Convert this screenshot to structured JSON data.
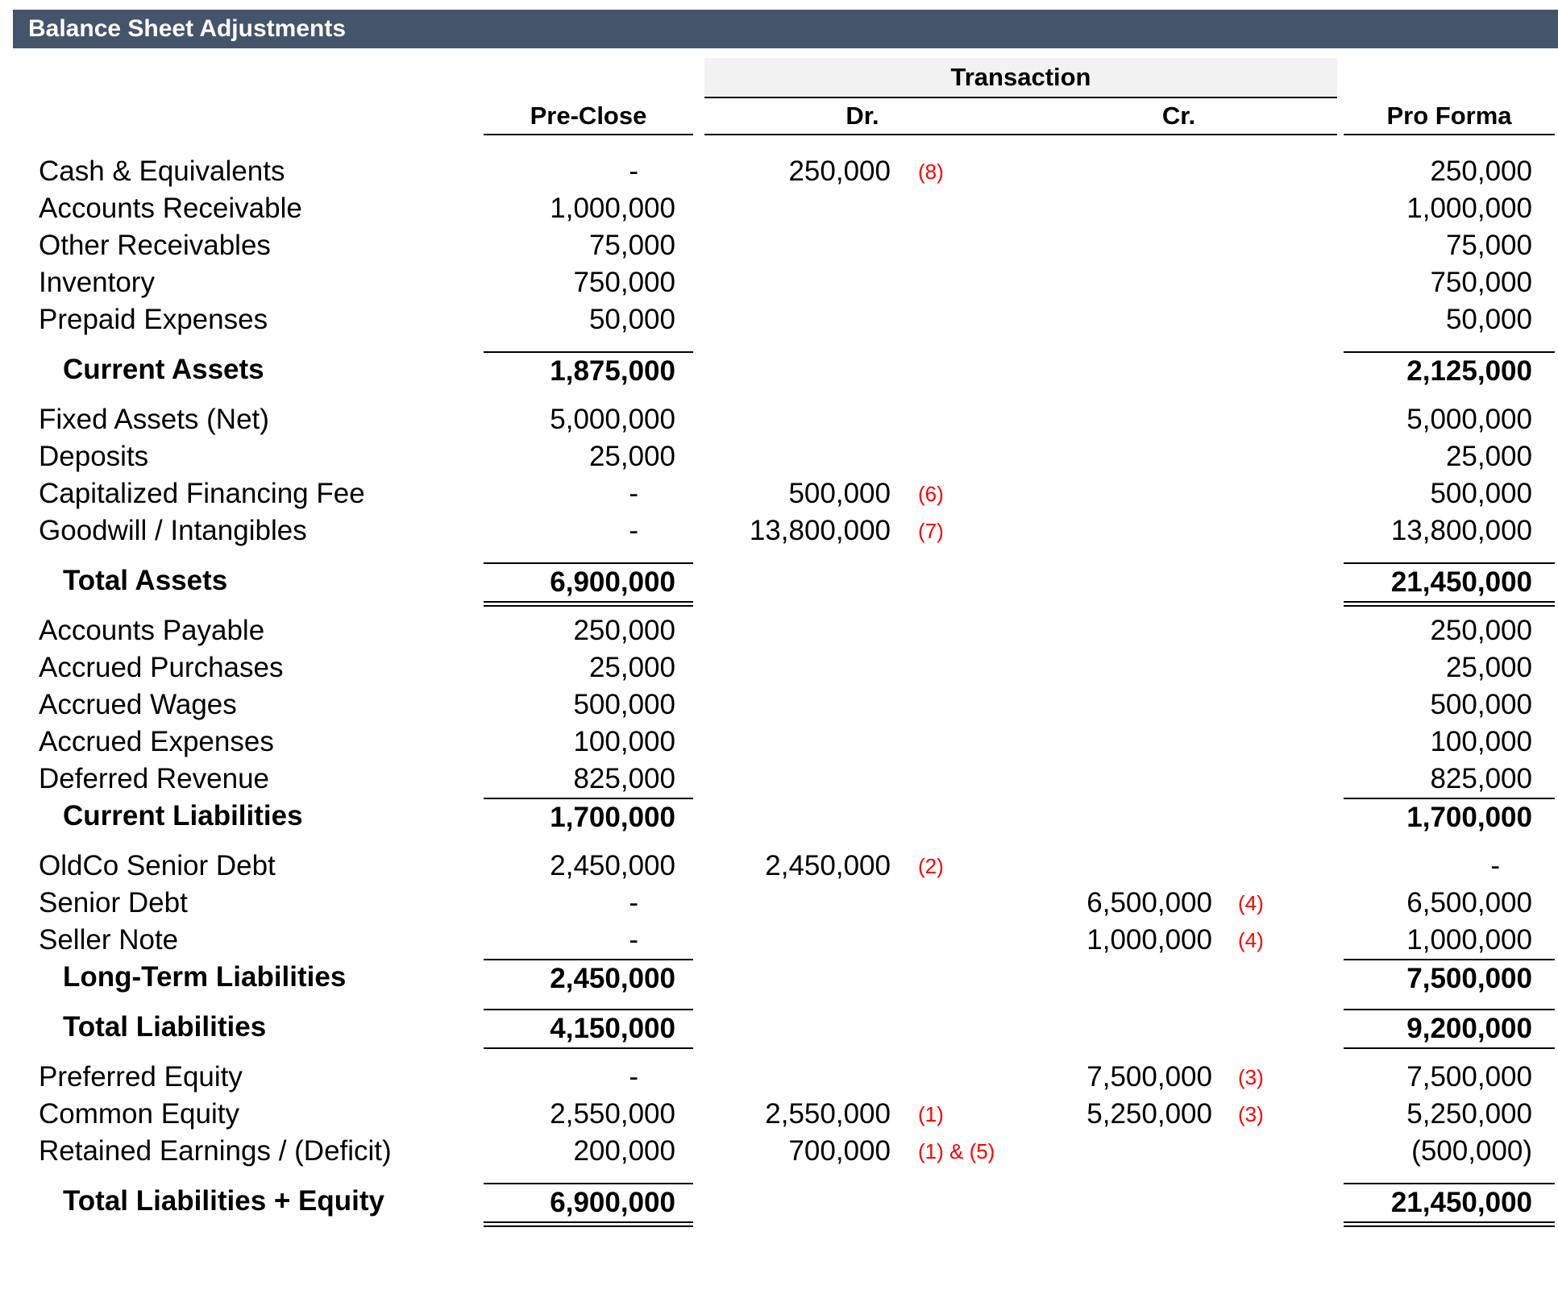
{
  "title": "Balance Sheet Adjustments",
  "colors": {
    "title_bar_bg": "#44546A",
    "title_text": "#FFFFFF",
    "transaction_header_bg": "#F2F2F2",
    "reference_red": "#FF0000"
  },
  "header": {
    "transaction_label": "Transaction",
    "columns": {
      "pre_close": "Pre-Close",
      "dr": "Dr.",
      "cr": "Cr.",
      "pro_forma": "Pro Forma"
    }
  },
  "table": {
    "rows": [
      {
        "label": "Cash & Equivalents",
        "pre_close": "-",
        "dr": "250,000",
        "dr_ref": "(8)",
        "cr": "",
        "cr_ref": "",
        "pro_forma": "250,000"
      },
      {
        "label": "Accounts Receivable",
        "pre_close": "1,000,000",
        "dr": "",
        "dr_ref": "",
        "cr": "",
        "cr_ref": "",
        "pro_forma": "1,000,000"
      },
      {
        "label": "Other Receivables",
        "pre_close": "75,000",
        "dr": "",
        "dr_ref": "",
        "cr": "",
        "cr_ref": "",
        "pro_forma": "75,000"
      },
      {
        "label": "Inventory",
        "pre_close": "750,000",
        "dr": "",
        "dr_ref": "",
        "cr": "",
        "cr_ref": "",
        "pro_forma": "750,000"
      },
      {
        "label": "Prepaid Expenses",
        "pre_close": "50,000",
        "dr": "",
        "dr_ref": "",
        "cr": "",
        "cr_ref": "",
        "pro_forma": "50,000"
      },
      {
        "label": "Current Assets",
        "pre_close": "1,875,000",
        "dr": "",
        "dr_ref": "",
        "cr": "",
        "cr_ref": "",
        "pro_forma": "2,125,000",
        "bold": true,
        "indent": true,
        "gap": true,
        "line_top": true
      },
      {
        "label": "Fixed Assets (Net)",
        "pre_close": "5,000,000",
        "dr": "",
        "dr_ref": "",
        "cr": "",
        "cr_ref": "",
        "pro_forma": "5,000,000",
        "gap": true
      },
      {
        "label": "Deposits",
        "pre_close": "25,000",
        "dr": "",
        "dr_ref": "",
        "cr": "",
        "cr_ref": "",
        "pro_forma": "25,000"
      },
      {
        "label": "Capitalized Financing Fee",
        "pre_close": "-",
        "dr": "500,000",
        "dr_ref": "(6)",
        "cr": "",
        "cr_ref": "",
        "pro_forma": "500,000"
      },
      {
        "label": "Goodwill / Intangibles",
        "pre_close": "-",
        "dr": "13,800,000",
        "dr_ref": "(7)",
        "cr": "",
        "cr_ref": "",
        "pro_forma": "13,800,000"
      },
      {
        "label": "Total Assets",
        "pre_close": "6,900,000",
        "dr": "",
        "dr_ref": "",
        "cr": "",
        "cr_ref": "",
        "pro_forma": "21,450,000",
        "bold": true,
        "indent": true,
        "gap": true,
        "line_top": true,
        "line_bottom": "double"
      },
      {
        "label": "Accounts Payable",
        "pre_close": "250,000",
        "dr": "",
        "dr_ref": "",
        "cr": "",
        "cr_ref": "",
        "pro_forma": "250,000",
        "gap": true
      },
      {
        "label": "Accrued Purchases",
        "pre_close": "25,000",
        "dr": "",
        "dr_ref": "",
        "cr": "",
        "cr_ref": "",
        "pro_forma": "25,000"
      },
      {
        "label": "Accrued Wages",
        "pre_close": "500,000",
        "dr": "",
        "dr_ref": "",
        "cr": "",
        "cr_ref": "",
        "pro_forma": "500,000"
      },
      {
        "label": "Accrued Expenses",
        "pre_close": "100,000",
        "dr": "",
        "dr_ref": "",
        "cr": "",
        "cr_ref": "",
        "pro_forma": "100,000"
      },
      {
        "label": "Deferred Revenue",
        "pre_close": "825,000",
        "dr": "",
        "dr_ref": "",
        "cr": "",
        "cr_ref": "",
        "pro_forma": "825,000"
      },
      {
        "label": "Current Liabilities",
        "pre_close": "1,700,000",
        "dr": "",
        "dr_ref": "",
        "cr": "",
        "cr_ref": "",
        "pro_forma": "1,700,000",
        "bold": true,
        "indent": true,
        "line_top": true
      },
      {
        "label": "OldCo Senior Debt",
        "pre_close": "2,450,000",
        "dr": "2,450,000",
        "dr_ref": "(2)",
        "cr": "",
        "cr_ref": "",
        "pro_forma": "-",
        "gap": true
      },
      {
        "label": "Senior Debt",
        "pre_close": "-",
        "dr": "",
        "dr_ref": "",
        "cr": "6,500,000",
        "cr_ref": "(4)",
        "pro_forma": "6,500,000"
      },
      {
        "label": "Seller Note",
        "pre_close": "-",
        "dr": "",
        "dr_ref": "",
        "cr": "1,000,000",
        "cr_ref": "(4)",
        "pro_forma": "1,000,000"
      },
      {
        "label": "Long-Term Liabilities",
        "pre_close": "2,450,000",
        "dr": "",
        "dr_ref": "",
        "cr": "",
        "cr_ref": "",
        "pro_forma": "7,500,000",
        "bold": true,
        "indent": true,
        "line_top": true
      },
      {
        "label": "Total Liabilities",
        "pre_close": "4,150,000",
        "dr": "",
        "dr_ref": "",
        "cr": "",
        "cr_ref": "",
        "pro_forma": "9,200,000",
        "bold": true,
        "indent": true,
        "gap": true,
        "line_top": true,
        "line_bottom": "single"
      },
      {
        "label": "Preferred Equity",
        "pre_close": "-",
        "dr": "",
        "dr_ref": "",
        "cr": "7,500,000",
        "cr_ref": "(3)",
        "pro_forma": "7,500,000",
        "gap": true
      },
      {
        "label": "Common Equity",
        "pre_close": "2,550,000",
        "dr": "2,550,000",
        "dr_ref": "(1)",
        "cr": "5,250,000",
        "cr_ref": "(3)",
        "pro_forma": "5,250,000"
      },
      {
        "label": "Retained Earnings / (Deficit)",
        "pre_close": "200,000",
        "dr": "700,000",
        "dr_ref": "(1) & (5)",
        "cr": "",
        "cr_ref": "",
        "pro_forma": "(500,000)"
      },
      {
        "label": "Total Liabilities + Equity",
        "pre_close": "6,900,000",
        "dr": "",
        "dr_ref": "",
        "cr": "",
        "cr_ref": "",
        "pro_forma": "21,450,000",
        "bold": true,
        "indent": true,
        "gap": true,
        "line_top": true,
        "line_bottom": "double"
      }
    ]
  }
}
